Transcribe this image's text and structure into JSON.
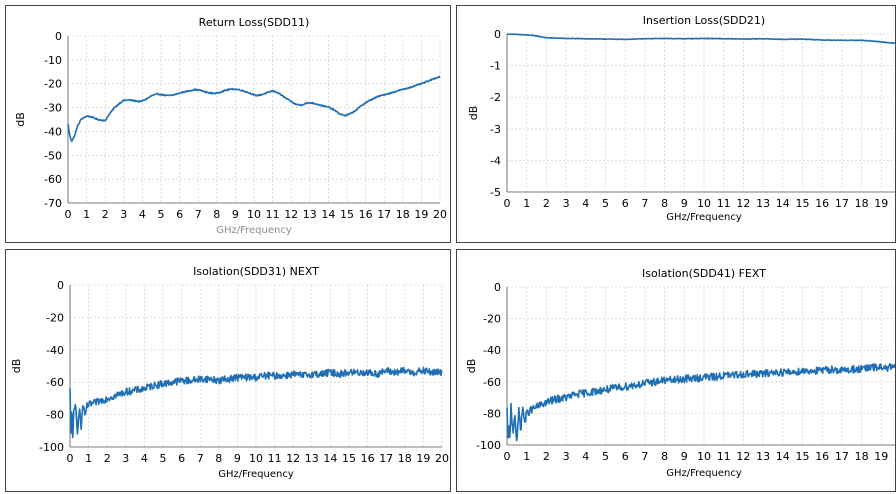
{
  "accent_color": "#1f6fb5",
  "chart_data": [
    {
      "type": "line",
      "title": "Return Loss(SDD11)",
      "xlabel": "GHz/Frequency",
      "xlabel_color": "#8c8c8c",
      "ylabel": "dB",
      "xlim": [
        0,
        20
      ],
      "ylim": [
        -70,
        0
      ],
      "xticks": [
        0,
        1,
        2,
        3,
        4,
        5,
        6,
        7,
        8,
        9,
        10,
        11,
        12,
        13,
        14,
        15,
        16,
        17,
        18,
        19,
        20
      ],
      "yticks": [
        0,
        -10,
        -20,
        -30,
        -40,
        -50,
        -60,
        -70
      ],
      "grid": true,
      "noise": 0.25,
      "series": [
        {
          "x": [
            0,
            0.1,
            0.2,
            0.35,
            0.5,
            0.7,
            1.0,
            1.3,
            1.6,
            2.0,
            2.2,
            2.5,
            2.8,
            3.0,
            3.3,
            3.6,
            3.9,
            4.2,
            4.5,
            4.8,
            5.0,
            5.3,
            5.6,
            5.9,
            6.2,
            6.5,
            6.8,
            7.1,
            7.4,
            7.7,
            8.0,
            8.3,
            8.6,
            8.9,
            9.2,
            9.5,
            9.8,
            10.1,
            10.4,
            10.7,
            11.0,
            11.3,
            11.6,
            11.9,
            12.2,
            12.5,
            12.8,
            13.1,
            13.4,
            13.7,
            14.0,
            14.3,
            14.6,
            14.9,
            15.2,
            15.5,
            15.8,
            16.1,
            16.4,
            16.7,
            17.0,
            17.4,
            17.8,
            18.2,
            18.6,
            19.0,
            19.4,
            19.8,
            20.0
          ],
          "y": [
            -37,
            -42,
            -44,
            -42,
            -38,
            -35,
            -33.5,
            -34,
            -35,
            -35.5,
            -33,
            -30,
            -28,
            -27,
            -26.8,
            -27.2,
            -27.5,
            -26.5,
            -25,
            -24.3,
            -24.5,
            -25,
            -24.8,
            -24.2,
            -23.5,
            -23,
            -22.5,
            -22.7,
            -23.5,
            -24,
            -24,
            -23.2,
            -22.5,
            -22.2,
            -22.5,
            -23.2,
            -24,
            -25,
            -24.6,
            -23.8,
            -23,
            -23.8,
            -25.5,
            -27,
            -28.5,
            -29,
            -28.2,
            -28,
            -28.6,
            -29.3,
            -29.8,
            -31,
            -32.6,
            -33.4,
            -32.5,
            -31,
            -29,
            -27.5,
            -26.3,
            -25.3,
            -24.6,
            -23.8,
            -22.8,
            -22,
            -21,
            -20,
            -18.8,
            -17.5,
            -17
          ]
        }
      ]
    },
    {
      "type": "line",
      "title": "Insertion Loss(SDD21)",
      "xlabel": "GHz/Frequency",
      "xlabel_color": "#000000",
      "ylabel": "dB",
      "xlim": [
        0,
        20
      ],
      "ylim": [
        -5,
        0
      ],
      "xticks": [
        0,
        1,
        2,
        3,
        4,
        5,
        6,
        7,
        8,
        9,
        10,
        11,
        12,
        13,
        14,
        15,
        16,
        17,
        18,
        19,
        20
      ],
      "yticks": [
        0,
        -1,
        -2,
        -3,
        -4,
        -5
      ],
      "grid": true,
      "noise": 0.008,
      "series": [
        {
          "x": [
            0,
            1,
            1.5,
            2,
            3,
            4,
            5,
            6,
            7,
            8,
            9,
            10,
            11,
            12,
            13,
            14,
            15,
            16,
            17,
            18,
            18.5,
            19,
            19.5,
            20
          ],
          "y": [
            0,
            -0.03,
            -0.06,
            -0.12,
            -0.14,
            -0.15,
            -0.16,
            -0.17,
            -0.15,
            -0.14,
            -0.15,
            -0.14,
            -0.15,
            -0.16,
            -0.15,
            -0.17,
            -0.16,
            -0.19,
            -0.2,
            -0.2,
            -0.22,
            -0.25,
            -0.28,
            -0.3
          ]
        }
      ]
    },
    {
      "type": "line",
      "title": "Isolation(SDD31) NEXT",
      "xlabel": "GHz/Frequency",
      "xlabel_color": "#000000",
      "ylabel": "dB",
      "xlim": [
        0,
        20
      ],
      "ylim": [
        -100,
        0
      ],
      "xticks": [
        0,
        1,
        2,
        3,
        4,
        5,
        6,
        7,
        8,
        9,
        10,
        11,
        12,
        13,
        14,
        15,
        16,
        17,
        18,
        19,
        20
      ],
      "yticks": [
        0,
        -20,
        -40,
        -60,
        -80,
        -100
      ],
      "grid": true,
      "noise": 2.2,
      "series": [
        {
          "x": [
            0,
            0.05,
            0.1,
            0.15,
            0.2,
            0.3,
            0.4,
            0.5,
            0.6,
            0.7,
            0.8,
            0.9,
            1.0,
            1.5,
            2,
            2.5,
            3,
            3.5,
            4,
            4.5,
            5,
            5.5,
            6,
            6.5,
            7,
            7.5,
            8,
            8.5,
            9,
            9.5,
            10,
            10.5,
            11,
            11.5,
            12,
            12.5,
            13,
            13.5,
            14,
            14.5,
            15,
            15.5,
            16,
            16.5,
            17,
            17.5,
            18,
            18.5,
            19,
            19.5,
            20
          ],
          "y": [
            -65,
            -95,
            -72,
            -97,
            -80,
            -74,
            -90,
            -76,
            -88,
            -73,
            -82,
            -75,
            -74,
            -72,
            -70,
            -68,
            -66,
            -65,
            -64,
            -62,
            -61,
            -60,
            -59,
            -59,
            -58,
            -58,
            -59,
            -58,
            -57,
            -57,
            -57,
            -56,
            -56,
            -56,
            -55,
            -56,
            -55,
            -55,
            -54,
            -55,
            -54,
            -54,
            -54,
            -55,
            -53,
            -54,
            -53,
            -54,
            -53,
            -54,
            -54
          ]
        }
      ]
    },
    {
      "type": "line",
      "title": "Isolation(SDD41) FEXT",
      "xlabel": "GHz/Frequency",
      "xlabel_color": "#000000",
      "ylabel": "dB",
      "xlim": [
        0,
        20
      ],
      "ylim": [
        -100,
        0
      ],
      "xticks": [
        0,
        1,
        2,
        3,
        4,
        5,
        6,
        7,
        8,
        9,
        10,
        11,
        12,
        13,
        14,
        15,
        16,
        17,
        18,
        19,
        20
      ],
      "yticks": [
        0,
        -20,
        -40,
        -60,
        -80,
        -100
      ],
      "grid": true,
      "noise": 2.4,
      "series": [
        {
          "x": [
            0,
            0.05,
            0.1,
            0.15,
            0.2,
            0.3,
            0.4,
            0.5,
            0.6,
            0.7,
            0.8,
            0.9,
            1.0,
            1.2,
            1.5,
            2,
            2.5,
            3,
            3.5,
            4,
            4.5,
            5,
            5.5,
            6,
            6.5,
            7,
            7.5,
            8,
            8.5,
            9,
            9.5,
            10,
            10.5,
            11,
            11.5,
            12,
            12.5,
            13,
            13.5,
            14,
            14.5,
            15,
            15.5,
            16,
            16.5,
            17,
            17.5,
            18,
            18.5,
            19,
            19.5,
            20
          ],
          "y": [
            -78,
            -100,
            -85,
            -99,
            -75,
            -92,
            -80,
            -100,
            -78,
            -90,
            -76,
            -86,
            -80,
            -78,
            -76,
            -73,
            -71,
            -70,
            -68,
            -67,
            -66,
            -65,
            -64,
            -63,
            -62,
            -61,
            -60,
            -59,
            -59,
            -58,
            -58,
            -57,
            -57,
            -56,
            -56,
            -55,
            -55,
            -55,
            -54,
            -54,
            -54,
            -53,
            -53,
            -53,
            -52,
            -53,
            -52,
            -52,
            -51,
            -51,
            -51,
            -50
          ]
        }
      ]
    }
  ]
}
